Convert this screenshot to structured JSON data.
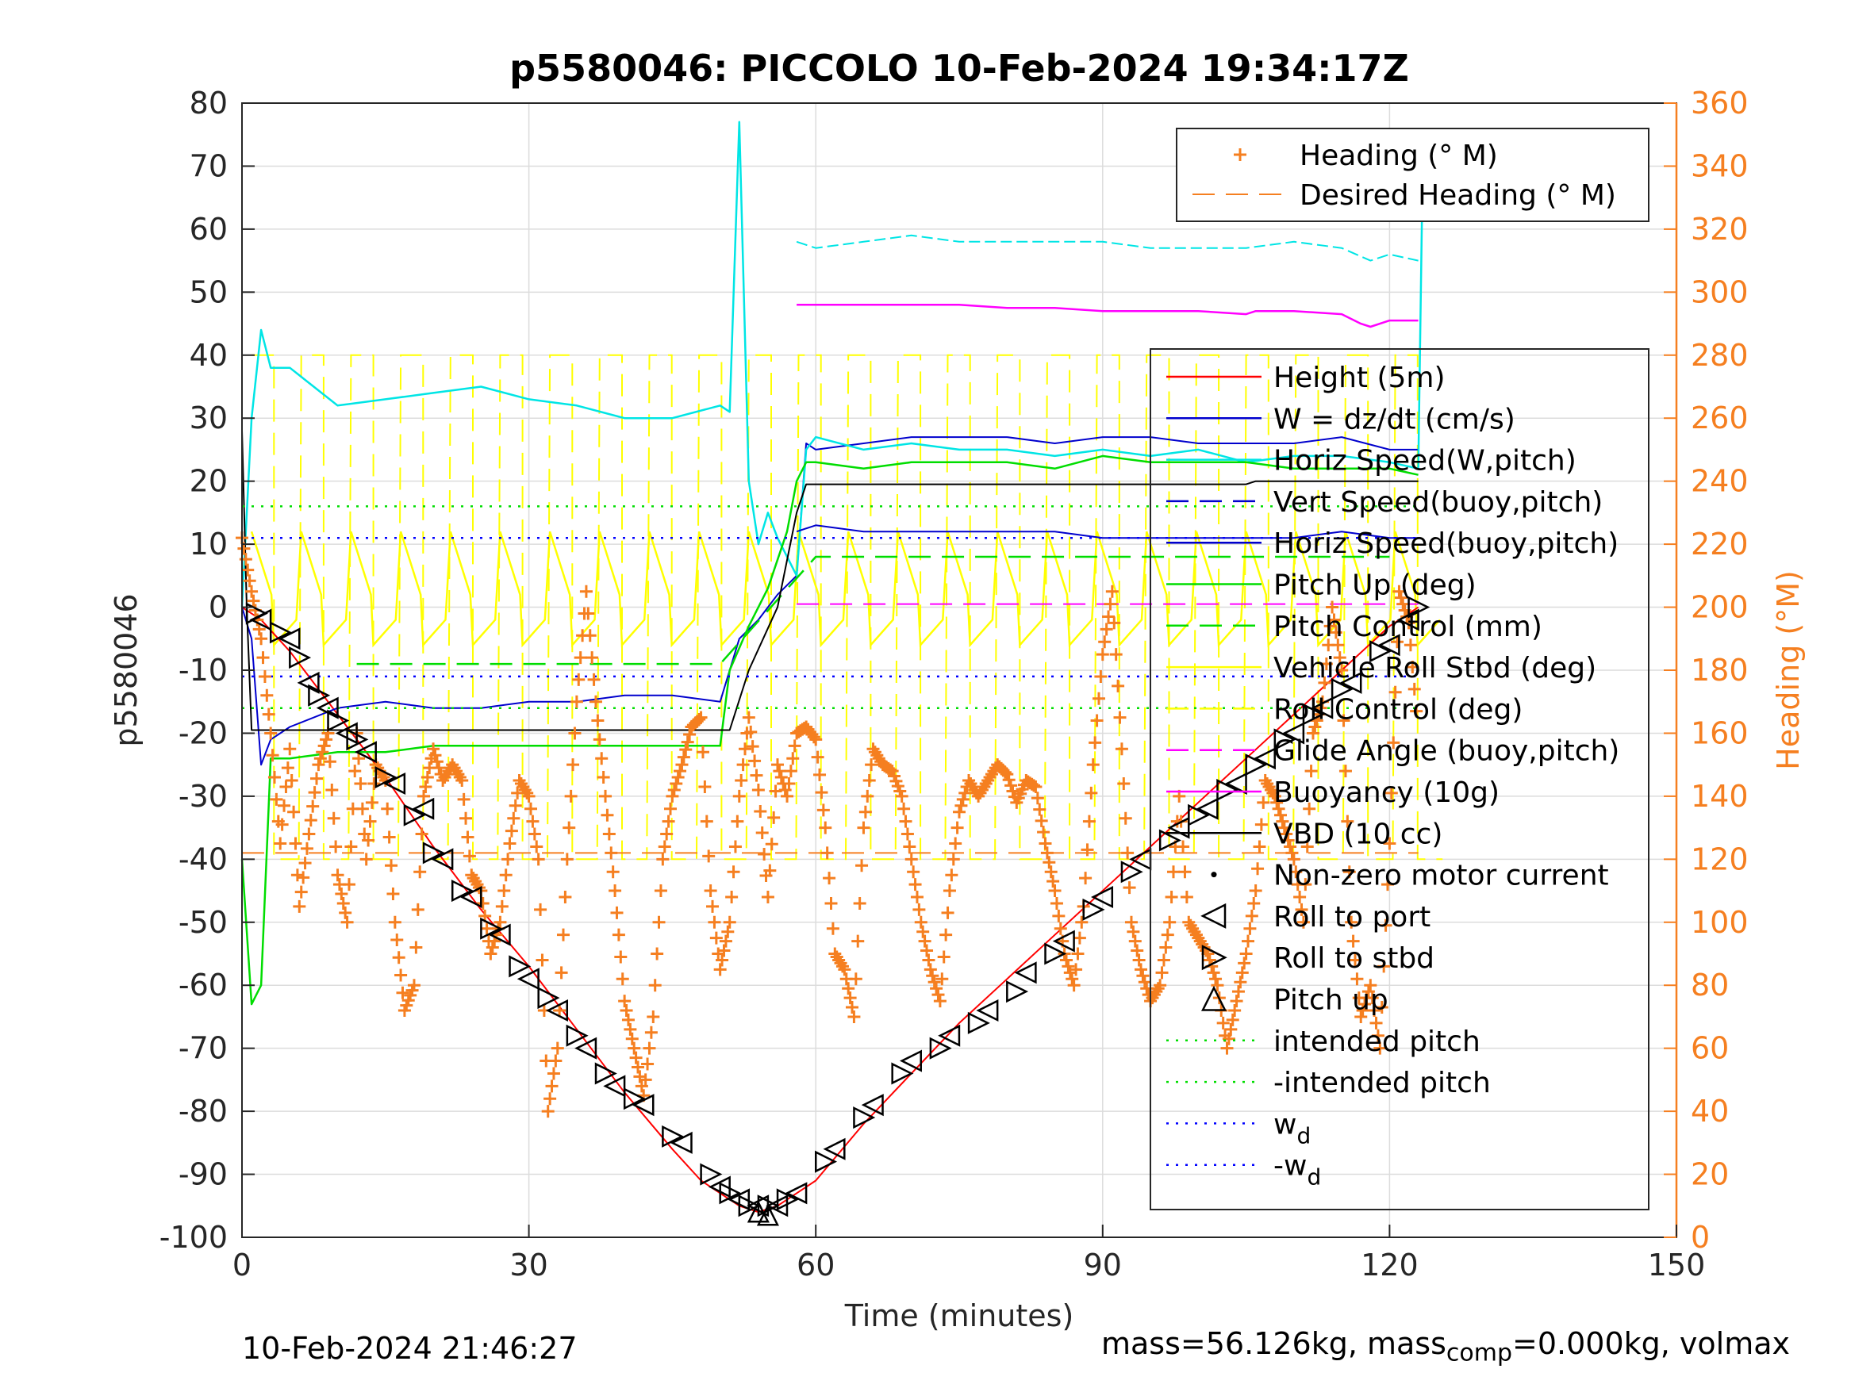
{
  "chart_data": {
    "type": "line",
    "title": "p5580046: PICCOLO 10-Feb-2024 19:34:17Z",
    "xlabel": "Time (minutes)",
    "ylabel_left": "p5580046",
    "ylabel_right": "Heading (°M)",
    "xlim": [
      0,
      150
    ],
    "ylim_left": [
      -100,
      80
    ],
    "ylim_right": [
      0,
      360
    ],
    "xticks": [
      "0",
      "30",
      "60",
      "90",
      "120",
      "150"
    ],
    "yticks_left": [
      "80",
      "70",
      "60",
      "50",
      "40",
      "30",
      "20",
      "10",
      "0",
      "-10",
      "-20",
      "-30",
      "-40",
      "-50",
      "-60",
      "-70",
      "-80",
      "-90",
      "-100"
    ],
    "yticks_right": [
      "360",
      "340",
      "320",
      "300",
      "280",
      "260",
      "240",
      "220",
      "200",
      "180",
      "160",
      "140",
      "120",
      "100",
      "80",
      "60",
      "40",
      "20",
      "0"
    ],
    "grid": true,
    "colors": {
      "heading": "#f57f20",
      "height": "#ff0000",
      "w": "#0000cd",
      "horiz_speed_w_pitch": "#00e5e5",
      "vert_speed_buoy_pitch": "#0000cd",
      "horiz_speed_buoy_pitch": "#0000cd",
      "pitch_up": "#00dd00",
      "pitch_control": "#00dd00",
      "roll": "#ffff00",
      "glide_angle": "#ff00ff",
      "buoyancy": "#ff00ff",
      "vbd": "#000000",
      "intended_pitch": "#00dd00",
      "wd": "#0000ff"
    },
    "legend_heading": {
      "location": "top-right",
      "entries": [
        "Heading (° M)",
        "Desired Heading (° M)"
      ]
    },
    "legend_main": {
      "location": "right",
      "entries": [
        "Height (5m)",
        "W = dz/dt (cm/s)",
        "Horiz Speed(W,pitch)",
        "Vert Speed(buoy,pitch)",
        "Horiz Speed(buoy,pitch)",
        "Pitch Up (deg)",
        "Pitch Control (mm)",
        "Vehicle Roll Stbd (deg)",
        "Roll Control (deg)",
        "Glide Angle (buoy,pitch)",
        "Buoyancy (10g)",
        "VBD (10 cc)",
        "Non-zero motor current",
        "Roll to port",
        "Roll to stbd",
        "Pitch up",
        "intended pitch",
        "-intended pitch",
        "w_d",
        "-w_d"
      ]
    },
    "series": [
      {
        "name": "Height (5m)",
        "axis": "left",
        "x": [
          0,
          2,
          5,
          10,
          15,
          20,
          25,
          30,
          35,
          40,
          45,
          48,
          50,
          52,
          54,
          56,
          58,
          60,
          65,
          70,
          75,
          80,
          85,
          90,
          95,
          100,
          105,
          110,
          115,
          120,
          123
        ],
        "y": [
          0,
          -2,
          -7,
          -17,
          -27,
          -38,
          -48,
          -57,
          -67,
          -77,
          -86,
          -91,
          -93,
          -95,
          -96,
          -95,
          -93,
          -91,
          -82,
          -74,
          -66,
          -59,
          -52,
          -45,
          -38,
          -31,
          -24,
          -17,
          -10,
          -3,
          0
        ]
      },
      {
        "name": "W = dz/dt (cm/s)",
        "axis": "left",
        "x": [
          0,
          1,
          2,
          3,
          5,
          10,
          15,
          20,
          25,
          30,
          35,
          40,
          45,
          50,
          51,
          52,
          54,
          56,
          58,
          59,
          60,
          65,
          70,
          75,
          80,
          85,
          90,
          95,
          100,
          105,
          110,
          115,
          120,
          123
        ],
        "y": [
          0,
          -5,
          -25,
          -21,
          -19,
          -16,
          -15,
          -16,
          -16,
          -15,
          -15,
          -14,
          -14,
          -15,
          -10,
          -5,
          -2,
          2,
          5,
          26,
          25,
          26,
          27,
          27,
          27,
          26,
          27,
          27,
          26,
          26,
          26,
          27,
          25,
          25
        ]
      },
      {
        "name": "Horiz Speed(W,pitch)",
        "axis": "left",
        "x": [
          0,
          1,
          2,
          3,
          5,
          10,
          15,
          20,
          25,
          30,
          35,
          40,
          45,
          50,
          51,
          52,
          53,
          54,
          55,
          56,
          58,
          59,
          60,
          65,
          70,
          75,
          80,
          85,
          90,
          95,
          100,
          105,
          110,
          115,
          120,
          123,
          123.5
        ],
        "y": [
          0,
          30,
          44,
          38,
          38,
          32,
          33,
          34,
          35,
          33,
          32,
          30,
          30,
          32,
          31,
          77,
          20,
          10,
          15,
          11,
          5,
          25,
          27,
          25,
          26,
          25,
          25,
          24,
          25,
          24,
          25,
          23,
          24,
          24,
          23,
          22,
          74
        ]
      },
      {
        "name": "Horiz Speed(W,pitch) upper",
        "axis": "left",
        "x": [
          58,
          60,
          65,
          70,
          75,
          80,
          85,
          90,
          95,
          100,
          105,
          110,
          115,
          118,
          120,
          123
        ],
        "y": [
          58,
          57,
          58,
          59,
          58,
          58,
          58,
          58,
          57,
          57,
          57,
          58,
          57,
          55,
          56,
          55
        ]
      },
      {
        "name": "Horiz Speed(buoy,pitch)",
        "axis": "left",
        "x": [
          58,
          60,
          65,
          70,
          75,
          80,
          85,
          90,
          95,
          100,
          105,
          110,
          115,
          120,
          123
        ],
        "y": [
          12,
          13,
          12,
          12,
          12,
          12,
          12,
          11,
          11,
          11,
          11,
          11,
          12,
          11,
          11
        ]
      },
      {
        "name": "Pitch Up (deg)",
        "axis": "left",
        "x": [
          0,
          1,
          2,
          3,
          5,
          10,
          15,
          20,
          25,
          30,
          35,
          40,
          45,
          50,
          51,
          53,
          55,
          57,
          58,
          59,
          60,
          65,
          70,
          75,
          80,
          85,
          90,
          95,
          100,
          105,
          110,
          115,
          120,
          123
        ],
        "y": [
          -40,
          -63,
          -60,
          -24,
          -24,
          -23,
          -23,
          -22,
          -22,
          -22,
          -22,
          -22,
          -22,
          -22,
          -10,
          -3,
          3,
          12,
          20,
          23,
          23,
          22,
          23,
          23,
          23,
          22,
          24,
          23,
          23,
          23,
          22,
          22,
          22,
          21
        ]
      },
      {
        "name": "Pitch Control (mm)",
        "axis": "left",
        "x": [
          12,
          20,
          30,
          40,
          50,
          60,
          70,
          80,
          90,
          100,
          110,
          120
        ],
        "y": [
          -9,
          -9,
          -9,
          -9,
          -9,
          8,
          8,
          8,
          8,
          8,
          8,
          8
        ]
      },
      {
        "name": "Glide Angle (buoy,pitch)",
        "axis": "left",
        "x": [
          58,
          65,
          75,
          85,
          95,
          105,
          115,
          123
        ],
        "y": [
          0.5,
          0.5,
          0.5,
          0.5,
          0.5,
          0.5,
          0.5,
          0.5
        ]
      },
      {
        "name": "Buoyancy (10g)",
        "axis": "left",
        "x": [
          58,
          60,
          65,
          70,
          75,
          80,
          85,
          90,
          95,
          100,
          105,
          106,
          110,
          115,
          117,
          118,
          120,
          123
        ],
        "y": [
          48,
          48,
          48,
          48,
          48,
          47.5,
          47.5,
          47,
          47,
          47,
          46.5,
          47,
          47,
          46.5,
          45,
          44.5,
          45.5,
          45.5
        ]
      },
      {
        "name": "VBD (10 cc)",
        "axis": "left",
        "x": [
          0,
          0.5,
          1,
          5,
          10,
          20,
          30,
          40,
          50,
          51,
          53,
          56,
          58,
          59,
          65,
          70,
          80,
          90,
          100,
          105,
          106,
          110,
          120,
          123
        ],
        "y": [
          28,
          0,
          -19.5,
          -19.5,
          -19.5,
          -19.5,
          -19.5,
          -19.5,
          -19.5,
          -19.5,
          -10,
          0,
          15,
          19.5,
          19.5,
          19.5,
          19.5,
          19.5,
          19.5,
          19.5,
          20,
          20,
          20,
          20
        ]
      },
      {
        "name": "intended pitch",
        "axis": "left",
        "x": [
          0,
          123
        ],
        "y": [
          16,
          16
        ]
      },
      {
        "name": "-intended pitch",
        "axis": "left",
        "x": [
          0,
          123
        ],
        "y": [
          -16,
          -16
        ]
      },
      {
        "name": "w_d",
        "axis": "left",
        "x": [
          0,
          123
        ],
        "y": [
          11,
          11
        ]
      },
      {
        "name": "-w_d",
        "axis": "left",
        "x": [
          0,
          123
        ],
        "y": [
          -11,
          -11
        ]
      },
      {
        "name": "Desired Heading (° M)",
        "axis": "right",
        "x": [
          0,
          123
        ],
        "y": [
          122,
          122
        ]
      },
      {
        "name": "Heading (° M)",
        "axis": "right",
        "x": [
          0,
          1,
          2,
          3,
          4,
          5,
          6,
          7,
          8,
          9,
          10,
          11,
          12,
          13,
          14,
          15,
          16,
          17,
          18,
          19,
          20,
          21,
          22,
          23,
          24,
          25,
          26,
          27,
          28,
          29,
          30,
          31,
          32,
          33,
          34,
          35,
          36,
          37,
          38,
          39,
          40,
          41,
          42,
          43,
          44,
          45,
          46,
          47,
          48,
          49,
          50,
          51,
          52,
          53,
          54,
          55,
          56,
          57,
          58,
          59,
          60,
          61,
          62,
          63,
          64,
          65,
          66,
          67,
          68,
          69,
          70,
          71,
          72,
          73,
          74,
          75,
          76,
          77,
          78,
          79,
          80,
          81,
          82,
          83,
          84,
          85,
          86,
          87,
          88,
          89,
          90,
          91,
          92,
          93,
          94,
          95,
          96,
          97,
          98,
          99,
          100,
          101,
          102,
          103,
          104,
          105,
          106,
          107,
          108,
          109,
          110,
          111,
          112,
          113,
          114,
          115,
          116,
          117,
          118,
          119,
          120,
          121,
          122,
          123
        ],
        "y": [
          222,
          205,
          190,
          160,
          125,
          155,
          105,
          128,
          150,
          160,
          115,
          100,
          160,
          120,
          150,
          145,
          100,
          72,
          80,
          140,
          155,
          145,
          150,
          145,
          115,
          110,
          90,
          100,
          125,
          145,
          140,
          120,
          40,
          60,
          120,
          170,
          205,
          170,
          140,
          110,
          75,
          60,
          45,
          70,
          120,
          140,
          150,
          162,
          165,
          110,
          85,
          100,
          140,
          165,
          142,
          108,
          150,
          140,
          160,
          162,
          158,
          130,
          90,
          85,
          70,
          130,
          155,
          150,
          148,
          140,
          120,
          100,
          85,
          75,
          110,
          135,
          145,
          140,
          145,
          150,
          147,
          138,
          145,
          143,
          125,
          110,
          90,
          80,
          105,
          150,
          185,
          205,
          155,
          100,
          85,
          75,
          80,
          100,
          140,
          100,
          95,
          90,
          80,
          60,
          75,
          90,
          110,
          145,
          140,
          130,
          120,
          100,
          160,
          170,
          200,
          180,
          100,
          70,
          80,
          60,
          125,
          205,
          195,
          160
        ]
      }
    ],
    "markers": {
      "roll_to_port": [
        [
          2,
          -2
        ],
        [
          5,
          -5
        ],
        [
          7,
          -12
        ],
        [
          9,
          -16
        ],
        [
          11,
          -20
        ],
        [
          13,
          -23
        ],
        [
          16,
          -28
        ],
        [
          19,
          -32
        ],
        [
          21,
          -40
        ],
        [
          24,
          -46
        ],
        [
          27,
          -52
        ],
        [
          30,
          -59
        ],
        [
          33,
          -64
        ],
        [
          36,
          -70
        ],
        [
          39,
          -76
        ],
        [
          42,
          -79
        ],
        [
          46,
          -85
        ],
        [
          50,
          -92
        ],
        [
          52,
          -94
        ],
        [
          54,
          -95
        ],
        [
          56,
          -95
        ],
        [
          58,
          -93
        ],
        [
          62,
          -86
        ],
        [
          66,
          -79
        ],
        [
          70,
          -72
        ],
        [
          74,
          -68
        ],
        [
          78,
          -64
        ],
        [
          82,
          -58
        ],
        [
          86,
          -53
        ],
        [
          90,
          -46
        ],
        [
          94,
          -40
        ],
        [
          98,
          -35
        ],
        [
          101,
          -32
        ],
        [
          104,
          -28
        ],
        [
          107,
          -24
        ],
        [
          110,
          -20
        ],
        [
          113,
          -16
        ],
        [
          116,
          -12
        ],
        [
          120,
          -6
        ],
        [
          122,
          -2
        ]
      ],
      "roll_to_stbd": [
        [
          1.5,
          -1
        ],
        [
          4,
          -4
        ],
        [
          6,
          -8
        ],
        [
          8,
          -14
        ],
        [
          10,
          -18
        ],
        [
          12,
          -21
        ],
        [
          15,
          -27
        ],
        [
          18,
          -33
        ],
        [
          20,
          -39
        ],
        [
          23,
          -45
        ],
        [
          26,
          -51
        ],
        [
          29,
          -57
        ],
        [
          32,
          -62
        ],
        [
          35,
          -68
        ],
        [
          38,
          -74
        ],
        [
          41,
          -78
        ],
        [
          45,
          -84
        ],
        [
          49,
          -90
        ],
        [
          51,
          -93
        ],
        [
          53,
          -95
        ],
        [
          55,
          -95
        ],
        [
          57,
          -94
        ],
        [
          61,
          -88
        ],
        [
          65,
          -81
        ],
        [
          69,
          -74
        ],
        [
          73,
          -70
        ],
        [
          77,
          -66
        ],
        [
          81,
          -61
        ],
        [
          85,
          -55
        ],
        [
          89,
          -48
        ],
        [
          93,
          -42
        ],
        [
          97,
          -37
        ],
        [
          100,
          -33
        ],
        [
          103,
          -29
        ],
        [
          106,
          -25
        ],
        [
          109,
          -21
        ],
        [
          112,
          -17
        ],
        [
          115,
          -13
        ],
        [
          119,
          -7
        ],
        [
          123,
          0
        ]
      ],
      "pitch_up": [
        [
          54,
          -96
        ],
        [
          55,
          -96.5
        ]
      ]
    }
  },
  "footer": {
    "timestamp": "10-Feb-2024 21:46:27",
    "mass_text": "mass=56.126kg, mass",
    "mass_sub": "comp",
    "mass_rest": "=0.000kg, volmax"
  }
}
